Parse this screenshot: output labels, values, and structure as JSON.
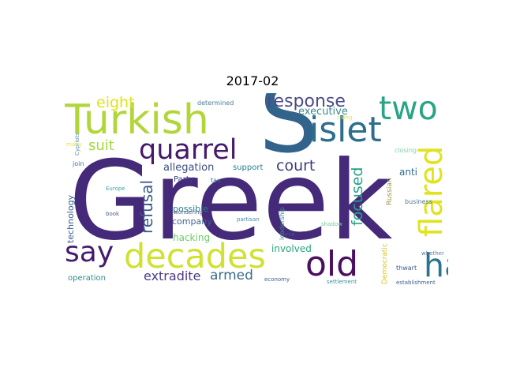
{
  "title": "2017-02",
  "words": [
    {
      "text": "Greek",
      "color": "#452a79"
    },
    {
      "text": "S",
      "color": "#32638a"
    },
    {
      "text": "Turkish",
      "color": "#b2d53a"
    },
    {
      "text": "islet",
      "color": "#2d6e8e"
    },
    {
      "text": "two",
      "color": "#2aa486"
    },
    {
      "text": "decades",
      "color": "#d0e130"
    },
    {
      "text": "quarrel",
      "color": "#46196a"
    },
    {
      "text": "say",
      "color": "#451c6d"
    },
    {
      "text": "old",
      "color": "#4b0f61"
    },
    {
      "text": "ha",
      "color": "#27758e"
    },
    {
      "text": "flared",
      "color": "#e0e320"
    },
    {
      "text": "response",
      "color": "#4b4b8a"
    },
    {
      "text": "eight",
      "color": "#dfe318"
    },
    {
      "text": "suit",
      "color": "#a3d93c"
    },
    {
      "text": "refusal",
      "color": "#3a5a8c"
    },
    {
      "text": "court",
      "color": "#3d3d7f"
    },
    {
      "text": "focused",
      "color": "#25a286"
    },
    {
      "text": "executive",
      "color": "#3d8a8c"
    },
    {
      "text": "extradite",
      "color": "#4c3a86"
    },
    {
      "text": "armed",
      "color": "#3c6c8a"
    },
    {
      "text": "allegation",
      "color": "#3b4d84"
    },
    {
      "text": "support",
      "color": "#2a7f8f"
    },
    {
      "text": "Party",
      "color": "#35438d"
    },
    {
      "text": "technology",
      "color": "#355a8d"
    },
    {
      "text": "company",
      "color": "#3f6290"
    },
    {
      "text": "possible",
      "color": "#2b7f8b"
    },
    {
      "text": "hacking",
      "color": "#68cf5e"
    },
    {
      "text": "involved",
      "color": "#28a67e"
    },
    {
      "text": "operation",
      "color": "#2d8e8c"
    },
    {
      "text": "leadership",
      "color": "#3d8d8c"
    },
    {
      "text": "Russian",
      "color": "#9a9a4d"
    },
    {
      "text": "anti",
      "color": "#2f6c8c"
    },
    {
      "text": "Democratic",
      "color": "#d9c42b"
    },
    {
      "text": "thwart",
      "color": "#3a5a8a"
    },
    {
      "text": "determined",
      "color": "#4a7d96"
    },
    {
      "text": "rising",
      "color": "#d7e366"
    },
    {
      "text": "closing",
      "color": "#7fd3a8"
    },
    {
      "text": "Cypriots",
      "color": "#5b8fa0"
    },
    {
      "text": "many",
      "color": "#e3e04a"
    },
    {
      "text": "join",
      "color": "#4a6e92"
    },
    {
      "text": "Europe",
      "color": "#3fa6a0"
    },
    {
      "text": "tax",
      "color": "#3a7190"
    },
    {
      "text": "wondering",
      "color": "#4a5a8c"
    },
    {
      "text": "book",
      "color": "#4a5d84"
    },
    {
      "text": "business",
      "color": "#4d7794"
    },
    {
      "text": "partisan",
      "color": "#4a8aaa"
    },
    {
      "text": "shadow",
      "color": "#78c8a0"
    },
    {
      "text": "force",
      "color": "#3b5a98"
    },
    {
      "text": "whether",
      "color": "#5d7ca2"
    },
    {
      "text": "economy",
      "color": "#3b5c91"
    },
    {
      "text": "settlement",
      "color": "#3a8fa0"
    },
    {
      "text": "establishment",
      "color": "#3e5f92"
    }
  ]
}
